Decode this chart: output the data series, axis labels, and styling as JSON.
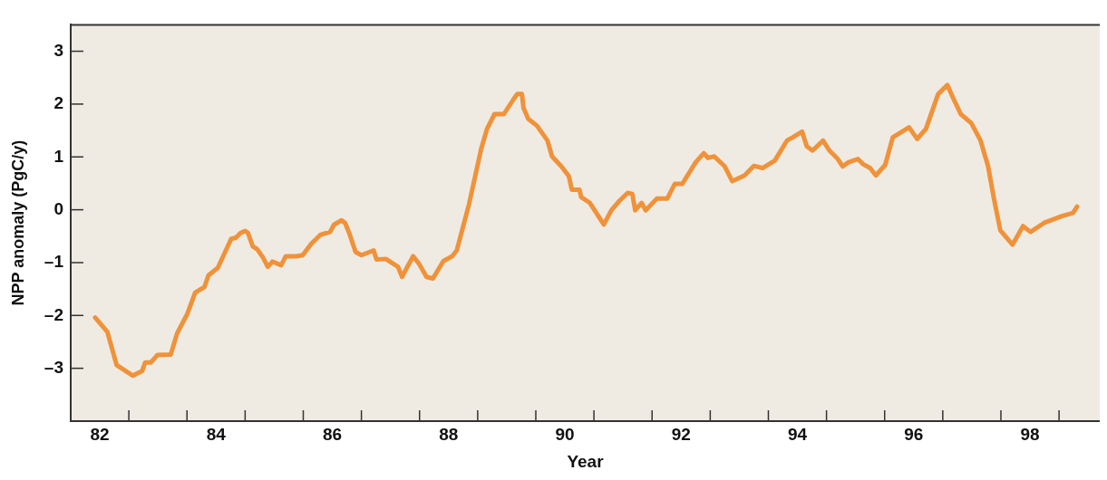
{
  "chart_data": {
    "type": "line",
    "xlabel": "Year",
    "ylabel": "NPP anomaly (PgC/y)",
    "xlim": [
      81.5,
      99.2
    ],
    "ylim": [
      -4,
      3.5
    ],
    "xticks": [
      82,
      {
        "value": 82.5,
        "label": null
      },
      {
        "value": 83.5,
        "label": null
      },
      84,
      {
        "value": 84.5,
        "label": null
      },
      {
        "value": 85.5,
        "label": null
      },
      86,
      {
        "value": 86.5,
        "label": null
      },
      {
        "value": 87.5,
        "label": null
      },
      88,
      {
        "value": 88.5,
        "label": null
      },
      {
        "value": 89.5,
        "label": null
      },
      90,
      {
        "value": 90.5,
        "label": null
      },
      {
        "value": 91.5,
        "label": null
      },
      92,
      {
        "value": 92.5,
        "label": null
      },
      {
        "value": 93.5,
        "label": null
      },
      94,
      {
        "value": 94.5,
        "label": null
      },
      {
        "value": 95.5,
        "label": null
      },
      96,
      {
        "value": 96.5,
        "label": null
      },
      {
        "value": 97.5,
        "label": null
      },
      98,
      {
        "value": 98.5,
        "label": null
      }
    ],
    "yticks": [
      {
        "value": -3,
        "label": "–3"
      },
      {
        "value": -2,
        "label": "–2"
      },
      {
        "value": -1,
        "label": "–1"
      },
      0,
      1,
      2,
      3
    ],
    "legend": false,
    "marker": "none",
    "line_style": "solid",
    "series": [
      {
        "color": "#f0923a",
        "x": [
          81.92,
          82.13,
          82.29,
          82.57,
          82.73,
          82.78,
          82.88,
          82.99,
          83.22,
          83.33,
          83.51,
          83.64,
          83.8,
          83.87,
          84.03,
          84.26,
          84.34,
          84.42,
          84.5,
          84.55,
          84.63,
          84.71,
          84.81,
          84.89,
          84.97,
          85.12,
          85.2,
          85.38,
          85.49,
          85.64,
          85.8,
          85.96,
          86.03,
          86.16,
          86.22,
          86.29,
          86.4,
          86.5,
          86.71,
          86.76,
          86.92,
          87.13,
          87.2,
          87.28,
          87.39,
          87.49,
          87.62,
          87.73,
          87.91,
          88.06,
          88.14,
          88.35,
          88.56,
          88.66,
          88.79,
          88.95,
          89.11,
          89.18,
          89.26,
          89.29,
          89.37,
          89.52,
          89.7,
          89.78,
          89.94,
          90.07,
          90.12,
          90.25,
          90.28,
          90.43,
          90.67,
          90.8,
          90.93,
          91.08,
          91.16,
          91.21,
          91.32,
          91.39,
          91.58,
          91.76,
          91.89,
          92.02,
          92.25,
          92.39,
          92.46,
          92.57,
          92.75,
          92.88,
          93.09,
          93.25,
          93.4,
          93.61,
          93.82,
          93.92,
          94.08,
          94.16,
          94.26,
          94.44,
          94.55,
          94.68,
          94.78,
          94.88,
          95.04,
          95.12,
          95.25,
          95.35,
          95.51,
          95.64,
          95.92,
          96.06,
          96.21,
          96.42,
          96.58,
          96.68,
          96.81,
          96.99,
          97.15,
          97.28,
          97.38,
          97.49,
          97.7,
          97.88,
          98.01,
          98.24,
          98.55,
          98.74,
          98.81
        ],
        "values": [
          -2.04,
          -2.31,
          -2.94,
          -3.14,
          -3.05,
          -2.89,
          -2.89,
          -2.75,
          -2.74,
          -2.34,
          -1.96,
          -1.57,
          -1.46,
          -1.24,
          -1.1,
          -0.55,
          -0.53,
          -0.44,
          -0.4,
          -0.44,
          -0.69,
          -0.75,
          -0.91,
          -1.08,
          -0.98,
          -1.05,
          -0.88,
          -0.88,
          -0.86,
          -0.64,
          -0.47,
          -0.42,
          -0.28,
          -0.2,
          -0.25,
          -0.44,
          -0.8,
          -0.86,
          -0.77,
          -0.94,
          -0.93,
          -1.08,
          -1.27,
          -1.1,
          -0.88,
          -1.02,
          -1.27,
          -1.3,
          -0.97,
          -0.88,
          -0.77,
          0.1,
          1.15,
          1.53,
          1.81,
          1.81,
          2.08,
          2.19,
          2.19,
          1.92,
          1.72,
          1.59,
          1.31,
          1.01,
          0.82,
          0.63,
          0.38,
          0.38,
          0.24,
          0.13,
          -0.28,
          -0.01,
          0.16,
          0.32,
          0.3,
          -0.01,
          0.13,
          -0.01,
          0.21,
          0.21,
          0.49,
          0.49,
          0.9,
          1.07,
          0.98,
          1.01,
          0.82,
          0.54,
          0.65,
          0.83,
          0.79,
          0.93,
          1.31,
          1.37,
          1.48,
          1.2,
          1.12,
          1.31,
          1.12,
          0.98,
          0.82,
          0.9,
          0.96,
          0.87,
          0.79,
          0.65,
          0.85,
          1.37,
          1.56,
          1.34,
          1.53,
          2.19,
          2.36,
          2.11,
          1.81,
          1.64,
          1.31,
          0.82,
          0.21,
          -0.39,
          -0.66,
          -0.31,
          -0.42,
          -0.25,
          -0.12,
          -0.06,
          0.06
        ]
      }
    ]
  }
}
